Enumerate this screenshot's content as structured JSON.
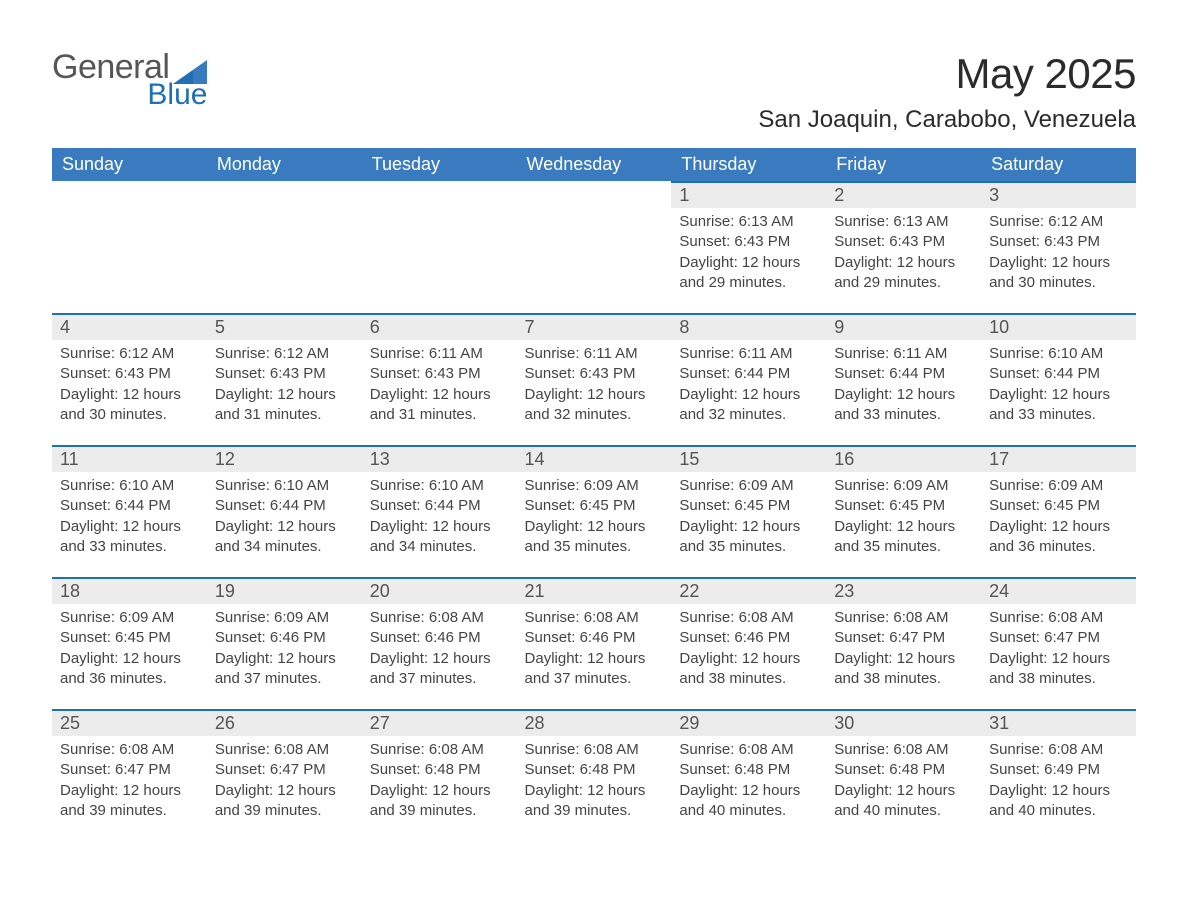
{
  "logo": {
    "word1": "General",
    "word2": "Blue"
  },
  "header": {
    "month_title": "May 2025",
    "location": "San Joaquin, Carabobo, Venezuela"
  },
  "colors": {
    "header_blue": "#3a7bbf",
    "accent_blue": "#1f6fb2",
    "light_grey": "#ececec",
    "text_dark": "#333333",
    "logo_grey": "#565656",
    "background": "#ffffff"
  },
  "typography": {
    "month_title_fontsize": 42,
    "location_fontsize": 24,
    "weekday_header_fontsize": 18,
    "daynum_fontsize": 18,
    "body_fontsize": 15,
    "font_family": "Arial"
  },
  "calendar": {
    "type": "table",
    "weekdays": [
      "Sunday",
      "Monday",
      "Tuesday",
      "Wednesday",
      "Thursday",
      "Friday",
      "Saturday"
    ],
    "first_day_column_index": 4,
    "days": [
      {
        "n": 1,
        "sunrise": "6:13 AM",
        "sunset": "6:43 PM",
        "daylight": "12 hours and 29 minutes."
      },
      {
        "n": 2,
        "sunrise": "6:13 AM",
        "sunset": "6:43 PM",
        "daylight": "12 hours and 29 minutes."
      },
      {
        "n": 3,
        "sunrise": "6:12 AM",
        "sunset": "6:43 PM",
        "daylight": "12 hours and 30 minutes."
      },
      {
        "n": 4,
        "sunrise": "6:12 AM",
        "sunset": "6:43 PM",
        "daylight": "12 hours and 30 minutes."
      },
      {
        "n": 5,
        "sunrise": "6:12 AM",
        "sunset": "6:43 PM",
        "daylight": "12 hours and 31 minutes."
      },
      {
        "n": 6,
        "sunrise": "6:11 AM",
        "sunset": "6:43 PM",
        "daylight": "12 hours and 31 minutes."
      },
      {
        "n": 7,
        "sunrise": "6:11 AM",
        "sunset": "6:43 PM",
        "daylight": "12 hours and 32 minutes."
      },
      {
        "n": 8,
        "sunrise": "6:11 AM",
        "sunset": "6:44 PM",
        "daylight": "12 hours and 32 minutes."
      },
      {
        "n": 9,
        "sunrise": "6:11 AM",
        "sunset": "6:44 PM",
        "daylight": "12 hours and 33 minutes."
      },
      {
        "n": 10,
        "sunrise": "6:10 AM",
        "sunset": "6:44 PM",
        "daylight": "12 hours and 33 minutes."
      },
      {
        "n": 11,
        "sunrise": "6:10 AM",
        "sunset": "6:44 PM",
        "daylight": "12 hours and 33 minutes."
      },
      {
        "n": 12,
        "sunrise": "6:10 AM",
        "sunset": "6:44 PM",
        "daylight": "12 hours and 34 minutes."
      },
      {
        "n": 13,
        "sunrise": "6:10 AM",
        "sunset": "6:44 PM",
        "daylight": "12 hours and 34 minutes."
      },
      {
        "n": 14,
        "sunrise": "6:09 AM",
        "sunset": "6:45 PM",
        "daylight": "12 hours and 35 minutes."
      },
      {
        "n": 15,
        "sunrise": "6:09 AM",
        "sunset": "6:45 PM",
        "daylight": "12 hours and 35 minutes."
      },
      {
        "n": 16,
        "sunrise": "6:09 AM",
        "sunset": "6:45 PM",
        "daylight": "12 hours and 35 minutes."
      },
      {
        "n": 17,
        "sunrise": "6:09 AM",
        "sunset": "6:45 PM",
        "daylight": "12 hours and 36 minutes."
      },
      {
        "n": 18,
        "sunrise": "6:09 AM",
        "sunset": "6:45 PM",
        "daylight": "12 hours and 36 minutes."
      },
      {
        "n": 19,
        "sunrise": "6:09 AM",
        "sunset": "6:46 PM",
        "daylight": "12 hours and 37 minutes."
      },
      {
        "n": 20,
        "sunrise": "6:08 AM",
        "sunset": "6:46 PM",
        "daylight": "12 hours and 37 minutes."
      },
      {
        "n": 21,
        "sunrise": "6:08 AM",
        "sunset": "6:46 PM",
        "daylight": "12 hours and 37 minutes."
      },
      {
        "n": 22,
        "sunrise": "6:08 AM",
        "sunset": "6:46 PM",
        "daylight": "12 hours and 38 minutes."
      },
      {
        "n": 23,
        "sunrise": "6:08 AM",
        "sunset": "6:47 PM",
        "daylight": "12 hours and 38 minutes."
      },
      {
        "n": 24,
        "sunrise": "6:08 AM",
        "sunset": "6:47 PM",
        "daylight": "12 hours and 38 minutes."
      },
      {
        "n": 25,
        "sunrise": "6:08 AM",
        "sunset": "6:47 PM",
        "daylight": "12 hours and 39 minutes."
      },
      {
        "n": 26,
        "sunrise": "6:08 AM",
        "sunset": "6:47 PM",
        "daylight": "12 hours and 39 minutes."
      },
      {
        "n": 27,
        "sunrise": "6:08 AM",
        "sunset": "6:48 PM",
        "daylight": "12 hours and 39 minutes."
      },
      {
        "n": 28,
        "sunrise": "6:08 AM",
        "sunset": "6:48 PM",
        "daylight": "12 hours and 39 minutes."
      },
      {
        "n": 29,
        "sunrise": "6:08 AM",
        "sunset": "6:48 PM",
        "daylight": "12 hours and 40 minutes."
      },
      {
        "n": 30,
        "sunrise": "6:08 AM",
        "sunset": "6:48 PM",
        "daylight": "12 hours and 40 minutes."
      },
      {
        "n": 31,
        "sunrise": "6:08 AM",
        "sunset": "6:49 PM",
        "daylight": "12 hours and 40 minutes."
      }
    ],
    "labels": {
      "sunrise_prefix": "Sunrise: ",
      "sunset_prefix": "Sunset: ",
      "daylight_prefix": "Daylight: "
    }
  }
}
